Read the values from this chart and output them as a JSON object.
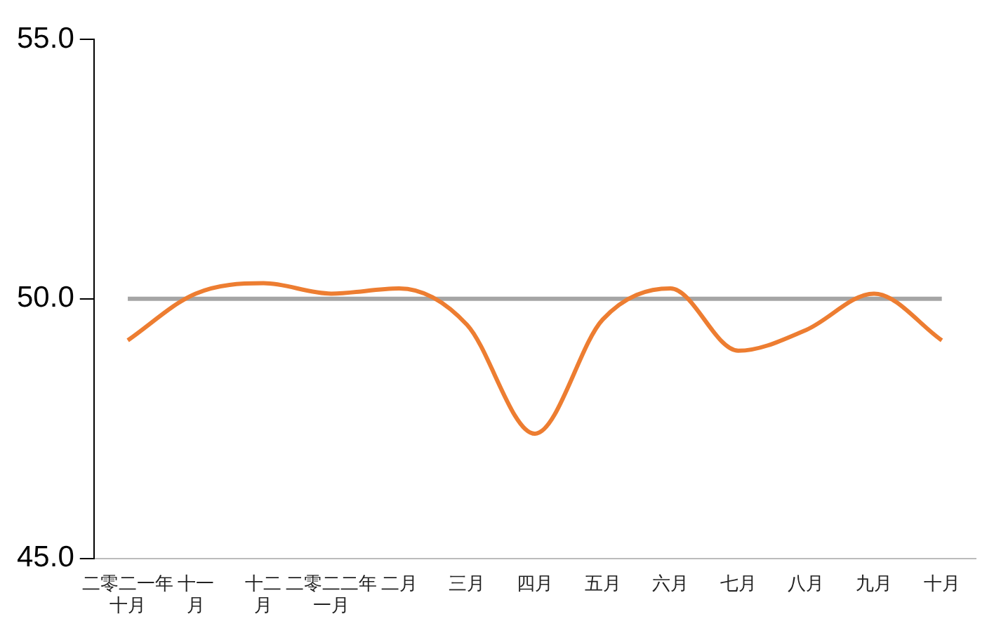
{
  "chart_data": {
    "type": "line",
    "categories": [
      "二零二一年十月",
      "十一月",
      "十二月",
      "二零二二年一月",
      "二月",
      "三月",
      "四月",
      "五月",
      "六月",
      "七月",
      "八月",
      "九月",
      "十月"
    ],
    "series": [
      {
        "color": "#ed7d31",
        "values": [
          49.2,
          50.1,
          50.3,
          50.1,
          50.2,
          49.5,
          47.4,
          49.6,
          50.2,
          49.0,
          49.4,
          50.1,
          49.2
        ]
      }
    ],
    "ylim": [
      45,
      55
    ],
    "yticks": [
      {
        "value": 45,
        "label": "45.0"
      },
      {
        "value": 50,
        "label": "50.0"
      },
      {
        "value": 55,
        "label": "55.0"
      }
    ],
    "ref_lines": [
      {
        "axis": "y",
        "value": 50,
        "color": "#a5a5a5"
      }
    ],
    "grid": false,
    "legend": false,
    "marker": "none",
    "line_style": "solid"
  }
}
